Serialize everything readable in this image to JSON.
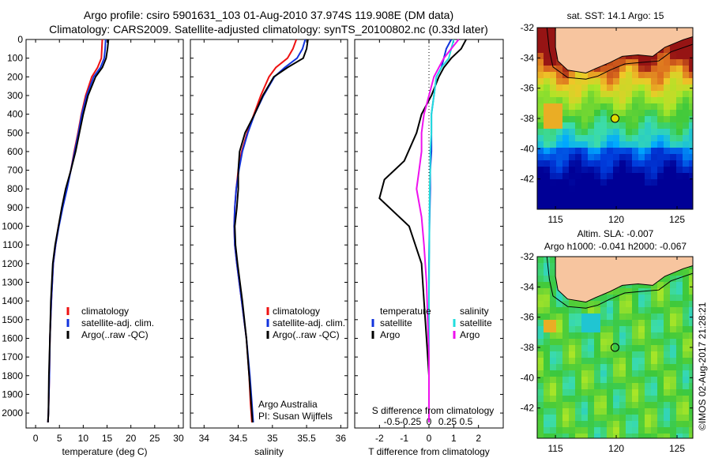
{
  "header": {
    "line1": "Argo profile: csiro 5901631_103 01-Aug-2010 37.974S 119.908E (DM data)",
    "line2": "Climatology: CARS2009. Satellite-adjusted climatology: synTS_20100802.nc (0.33d later)"
  },
  "footer": {
    "argo_australia": "Argo Australia",
    "pi": "PI: Susan Wijffels",
    "imos": "©IMOS 02-Aug-2017 21:28:21"
  },
  "colors": {
    "climatology": "#ee1111",
    "satellite": "#1133dd",
    "argo": "#000000",
    "sat_salinity": "#22dddd",
    "argo_salinity": "#ee11ee",
    "land": "#f7c59f"
  },
  "chart_data": [
    {
      "id": "temperature",
      "type": "line",
      "xlabel": "temperature (deg C)",
      "ylabel": "",
      "xlim": [
        -2,
        31
      ],
      "ylim": [
        2080,
        0
      ],
      "xticks": [
        0,
        5,
        10,
        15,
        20,
        25,
        30
      ],
      "yticks": [
        0,
        100,
        200,
        300,
        400,
        500,
        600,
        700,
        800,
        900,
        1000,
        1100,
        1200,
        1300,
        1400,
        1500,
        1600,
        1700,
        1800,
        1900,
        2000
      ],
      "legend": [
        "climatology",
        "satellite-adj. clim.",
        "Argo(..raw -QC)"
      ],
      "legend_position": "lower-middle",
      "series": [
        {
          "name": "climatology",
          "color": "#ee1111",
          "x": [
            14.0,
            13.9,
            13.8,
            13.0,
            11.8,
            10.5,
            9.6,
            8.9,
            8.1,
            7.4,
            6.5,
            5.6,
            4.8,
            4.2,
            3.7,
            3.3,
            3.0,
            2.9,
            2.7,
            2.6
          ],
          "y": [
            0,
            50,
            100,
            150,
            200,
            300,
            400,
            500,
            600,
            700,
            800,
            900,
            1000,
            1100,
            1200,
            1400,
            1600,
            1800,
            2000,
            2050
          ]
        },
        {
          "name": "satellite-adj. clim.",
          "color": "#1133dd",
          "x": [
            14.7,
            14.6,
            14.4,
            13.6,
            12.2,
            10.7,
            9.7,
            9.0,
            8.2,
            7.4,
            6.6,
            5.7,
            4.9,
            4.2,
            3.7,
            3.3,
            3.0,
            2.9,
            2.7,
            2.6
          ],
          "y": [
            0,
            50,
            100,
            150,
            200,
            300,
            400,
            500,
            600,
            700,
            800,
            900,
            1000,
            1100,
            1200,
            1400,
            1600,
            1800,
            2000,
            2050
          ]
        },
        {
          "name": "Argo(..raw -QC)",
          "color": "#000000",
          "x": [
            15.3,
            15.1,
            14.8,
            14.0,
            12.6,
            11.0,
            10.0,
            9.2,
            8.4,
            7.4,
            6.3,
            5.5,
            4.8,
            4.1,
            3.6,
            3.2,
            3.0,
            2.8,
            2.7,
            2.6
          ],
          "y": [
            0,
            50,
            100,
            150,
            200,
            300,
            400,
            500,
            600,
            700,
            800,
            900,
            1000,
            1100,
            1200,
            1400,
            1600,
            1800,
            2000,
            2050
          ]
        }
      ]
    },
    {
      "id": "salinity",
      "type": "line",
      "xlabel": "salinity",
      "ylabel": "",
      "xlim": [
        33.8,
        36.1
      ],
      "ylim": [
        2080,
        0
      ],
      "xticks": [
        34,
        34.5,
        35,
        35.5,
        36
      ],
      "xticklabels": [
        "34",
        "34.5",
        "35",
        "35.5",
        "36"
      ],
      "legend": [
        "climatology",
        "satellite-adj. clim.",
        "Argo(..raw -QC)"
      ],
      "legend_position": "lower-right",
      "series": [
        {
          "name": "climatology",
          "color": "#ee1111",
          "x": [
            35.35,
            35.3,
            35.22,
            35.05,
            34.95,
            34.83,
            34.73,
            34.63,
            34.55,
            34.5,
            34.47,
            34.45,
            34.44,
            34.45,
            34.48,
            34.55,
            34.62,
            34.66,
            34.68,
            34.7
          ],
          "y": [
            0,
            50,
            100,
            150,
            200,
            300,
            400,
            500,
            600,
            700,
            800,
            900,
            1000,
            1100,
            1200,
            1400,
            1600,
            1800,
            1950,
            2050
          ]
        },
        {
          "name": "satellite-adj. clim.",
          "color": "#1133dd",
          "x": [
            35.48,
            35.44,
            35.36,
            35.18,
            35.03,
            34.87,
            34.74,
            34.64,
            34.56,
            34.51,
            34.47,
            34.45,
            34.44,
            34.45,
            34.48,
            34.55,
            34.62,
            34.67,
            34.7,
            34.72
          ],
          "y": [
            0,
            50,
            100,
            150,
            200,
            300,
            400,
            500,
            600,
            700,
            800,
            900,
            1000,
            1100,
            1200,
            1400,
            1600,
            1800,
            1950,
            2050
          ]
        },
        {
          "name": "Argo(..raw -QC)",
          "color": "#000000",
          "x": [
            35.52,
            35.5,
            35.45,
            35.22,
            35.02,
            34.86,
            34.74,
            34.6,
            34.52,
            34.5,
            34.5,
            34.48,
            34.45,
            34.46,
            34.49,
            34.56,
            34.62,
            34.66,
            34.69,
            34.71
          ],
          "y": [
            0,
            50,
            100,
            150,
            200,
            300,
            400,
            500,
            600,
            700,
            800,
            900,
            1000,
            1100,
            1200,
            1400,
            1600,
            1800,
            1950,
            2050
          ]
        }
      ]
    },
    {
      "id": "difference",
      "type": "line",
      "xlabel": "T difference from climatology",
      "title_bottom": "S difference from climatology",
      "xlim": [
        -3,
        3
      ],
      "ylim": [
        2080,
        0
      ],
      "xticks": [
        -2,
        -1,
        0,
        1,
        2
      ],
      "xticklabels_t": [
        "-2",
        "-1",
        "0",
        "1",
        "2"
      ],
      "xticklabels_s": [
        "-0.5",
        "-0.25",
        "0",
        "0.25",
        "0.5"
      ],
      "legend_temperature_title": "temperature",
      "legend_salinity_title": "salinity",
      "legend": [
        "satellite",
        "Argo",
        "satellite",
        "Argo"
      ],
      "series": [
        {
          "name": "temperature satellite",
          "color": "#1133dd",
          "x": [
            0.9,
            0.7,
            0.6,
            0.5,
            0.3,
            0.2,
            0.1,
            0.1,
            0.1,
            0.05,
            0.05,
            0.02,
            0.0,
            0.0,
            0.0,
            0.0,
            0.0,
            0.0
          ],
          "y": [
            0,
            50,
            100,
            150,
            200,
            300,
            400,
            500,
            600,
            700,
            800,
            1000,
            1200,
            1400,
            1600,
            1800,
            1950,
            2050
          ]
        },
        {
          "name": "temperature Argo",
          "color": "#000000",
          "x": [
            1.5,
            1.3,
            0.9,
            0.6,
            0.4,
            0.1,
            -0.3,
            -0.5,
            -1.0,
            -1.8,
            -2.0,
            -0.8,
            -0.3,
            -0.2,
            -0.1,
            0.0,
            0.0,
            0.0
          ],
          "y": [
            0,
            50,
            100,
            150,
            200,
            300,
            400,
            500,
            650,
            750,
            850,
            1000,
            1200,
            1400,
            1600,
            1800,
            1950,
            2050
          ]
        },
        {
          "name": "salinity satellite",
          "color": "#22dddd",
          "x": [
            1.0,
            0.9,
            0.8,
            0.5,
            0.3,
            0.2,
            0.1,
            0.1,
            0.05,
            0.05,
            0.03,
            0.02,
            0.01,
            0.0,
            0.0,
            0.0,
            0.0,
            0.0
          ],
          "y": [
            0,
            50,
            100,
            150,
            200,
            300,
            400,
            500,
            600,
            700,
            800,
            1000,
            1200,
            1400,
            1600,
            1800,
            1950,
            2050
          ]
        },
        {
          "name": "salinity Argo",
          "color": "#ee11ee",
          "x": [
            1.2,
            0.9,
            0.6,
            0.4,
            0.2,
            0.0,
            -0.2,
            -0.3,
            -0.3,
            -0.4,
            -0.5,
            -0.3,
            -0.2,
            -0.1,
            -0.05,
            0.0,
            0.0,
            0.0
          ],
          "y": [
            0,
            50,
            100,
            150,
            200,
            300,
            400,
            500,
            600,
            700,
            800,
            950,
            1100,
            1300,
            1500,
            1700,
            1950,
            2050
          ]
        }
      ]
    },
    {
      "id": "sst-map",
      "type": "heatmap",
      "title": "sat. SST: 14.1 Argo: 15",
      "xlim": [
        113.5,
        126.3
      ],
      "ylim": [
        -44,
        -32
      ],
      "xticks": [
        115,
        120,
        125
      ],
      "yticks": [
        -32,
        -34,
        -36,
        -38,
        -40,
        -42
      ],
      "float_position": [
        119.9,
        -38.0
      ],
      "marker": "filled-circle"
    },
    {
      "id": "sla-map",
      "type": "heatmap",
      "title1": "Altim. SLA: -0.007",
      "title2": "Argo h1000: -0.041 h2000: -0.067",
      "xlim": [
        113.5,
        126.3
      ],
      "ylim": [
        -44,
        -32
      ],
      "xticks": [
        115,
        120,
        125
      ],
      "yticks": [
        -32,
        -34,
        -36,
        -38,
        -40,
        -42
      ],
      "float_position": [
        119.9,
        -38.0
      ],
      "marker": "open-circle"
    }
  ]
}
